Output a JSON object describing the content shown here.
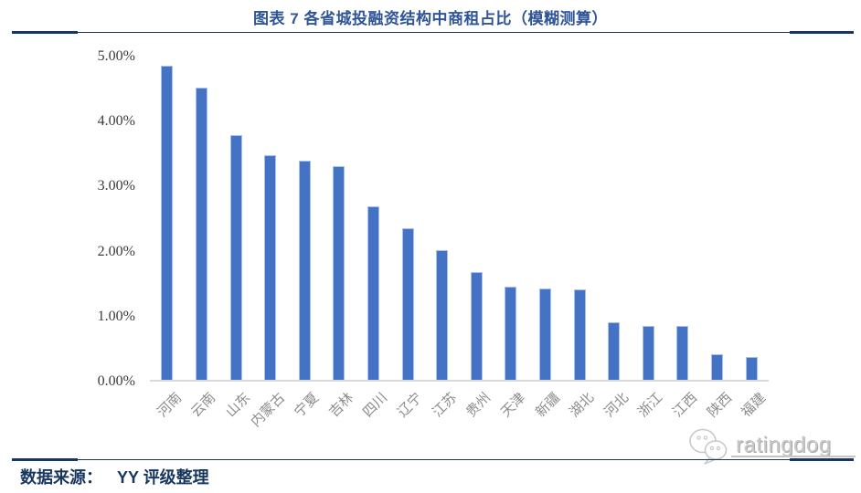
{
  "header": {
    "title": "图表 7 各省城投融资结构中商租占比（模糊测算）"
  },
  "footer": {
    "source_label": "数据来源：",
    "source_value": "YY 评级整理"
  },
  "watermark": {
    "brand": "ratingdog",
    "logo_icon": "dog-face-speech-bubble-icon"
  },
  "colors": {
    "bar": "#4472C4",
    "bar_border": "#A9C0E8",
    "title": "#2F5597",
    "rule": "#17375E",
    "axis_line": "#D9D9D9",
    "y_label": "#3B3B3B",
    "x_label": "#8C8C8C",
    "source_text": "#17375E",
    "watermark": "#C9C9C9"
  },
  "chart_data": {
    "type": "bar",
    "title": "图表 7 各省城投融资结构中商租占比（模糊测算）",
    "categories": [
      "河南",
      "云南",
      "山东",
      "内蒙古",
      "宁夏",
      "吉林",
      "四川",
      "辽宁",
      "江苏",
      "贵州",
      "天津",
      "新疆",
      "湖北",
      "河北",
      "浙江",
      "江西",
      "陕西",
      "福建"
    ],
    "values": [
      4.86,
      4.52,
      3.78,
      3.47,
      3.39,
      3.3,
      2.69,
      2.35,
      2.0,
      1.66,
      1.44,
      1.41,
      1.4,
      0.89,
      0.84,
      0.83,
      0.4,
      0.35
    ],
    "unit": "%",
    "xlabel": "",
    "ylabel": "",
    "ylim": [
      0,
      5
    ],
    "ytick_step": 1,
    "yticks": [
      "0.00%",
      "1.00%",
      "2.00%",
      "3.00%",
      "4.00%",
      "5.00%"
    ],
    "grid": false,
    "legend": "none",
    "x_label_rotation_deg": -45
  }
}
